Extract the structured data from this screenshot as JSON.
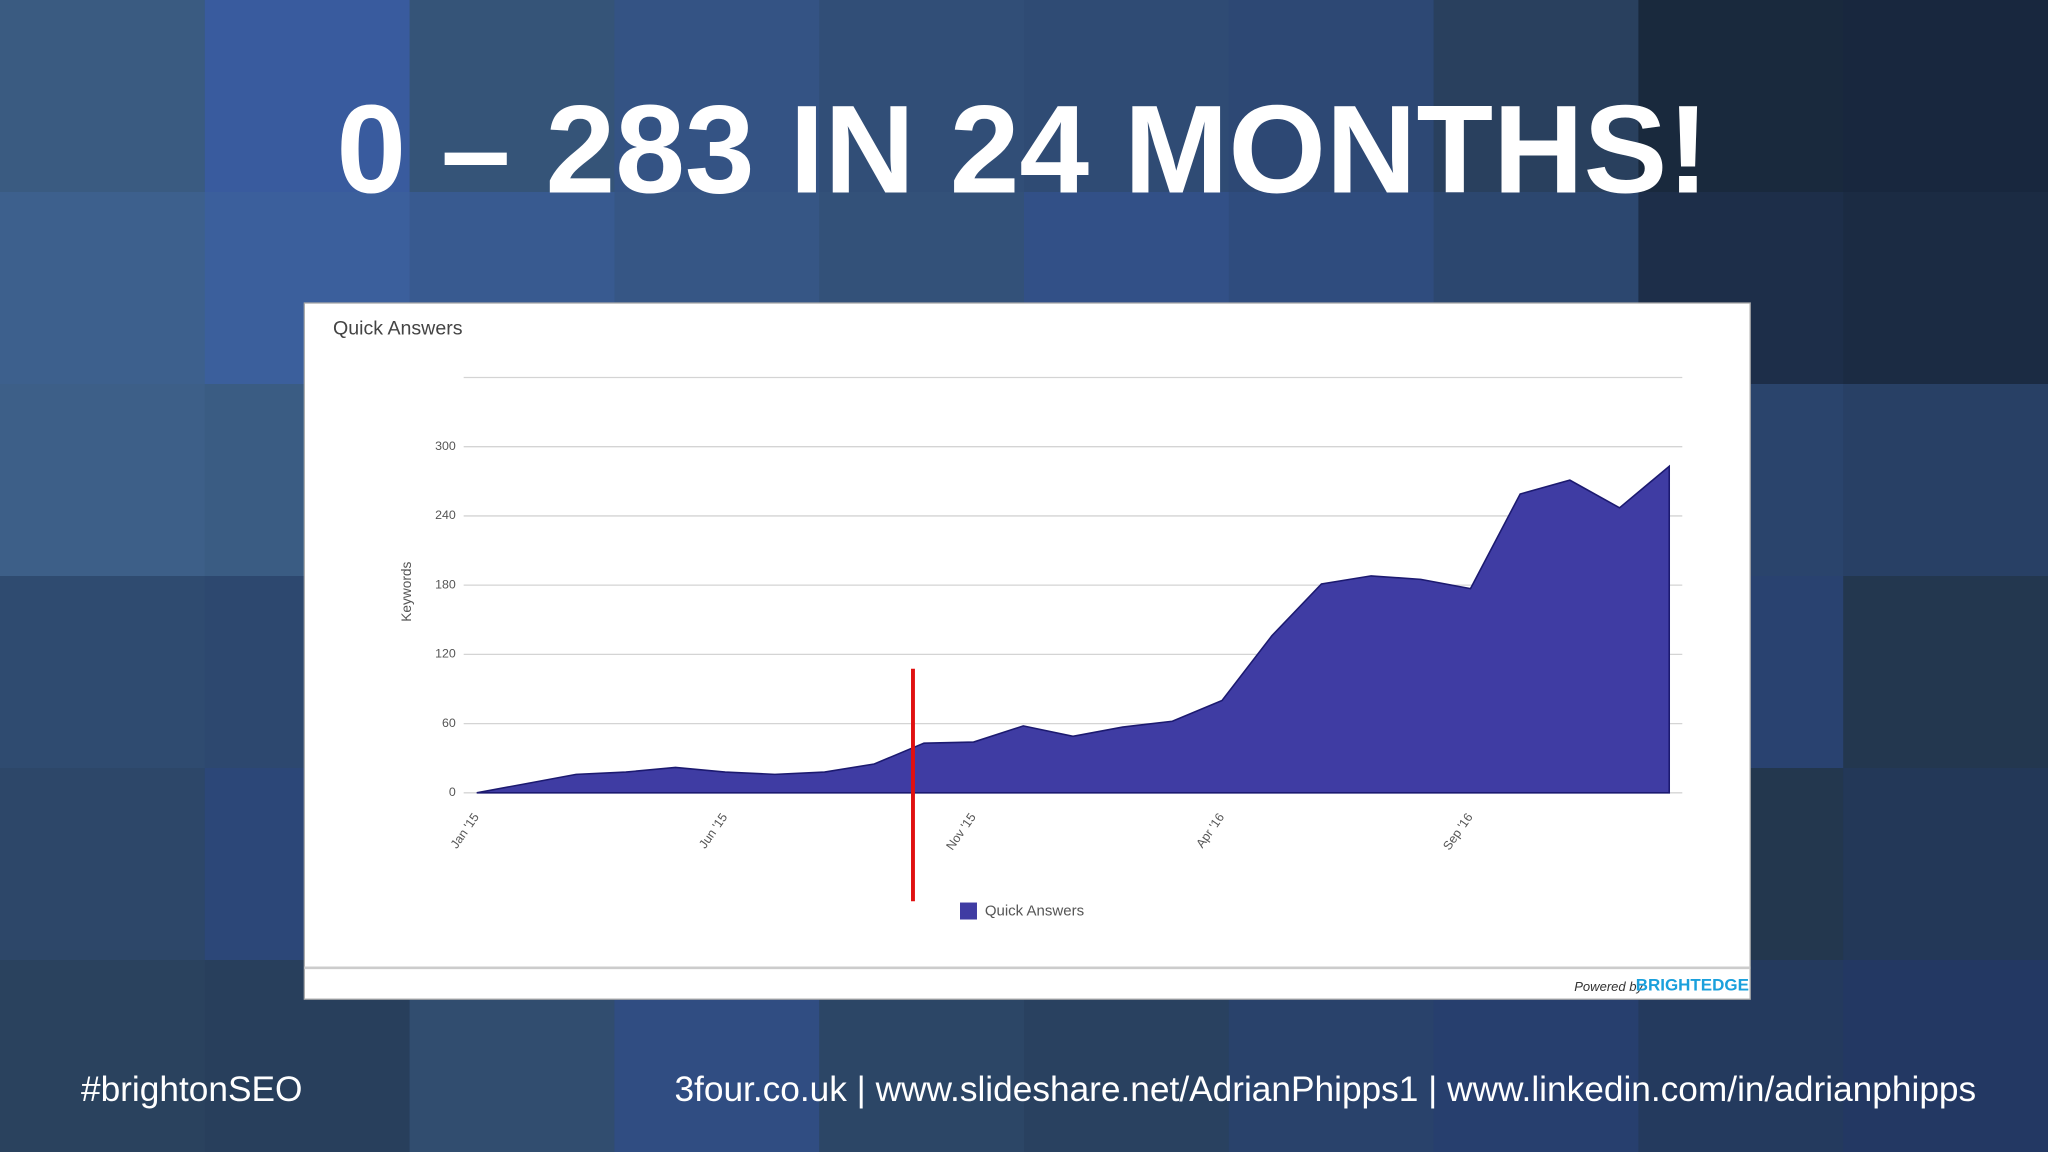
{
  "slide_title": "0 – 283 IN 24 MONTHS!",
  "chart_data": {
    "type": "area",
    "title": "Quick Answers",
    "y_label": "Keywords",
    "categories": [
      "Jan '15",
      null,
      null,
      null,
      null,
      "Jun '15",
      null,
      null,
      null,
      null,
      "Nov '15",
      null,
      null,
      null,
      null,
      "Apr '16",
      null,
      null,
      null,
      null,
      "Sep '16",
      null,
      null,
      null,
      null
    ],
    "series": [
      {
        "name": "Quick Answers",
        "color": "#3f3ca3",
        "values": [
          0,
          8,
          16,
          18,
          22,
          18,
          16,
          18,
          25,
          43,
          44,
          58,
          49,
          57,
          62,
          80,
          136,
          181,
          188,
          185,
          177,
          259,
          271,
          247,
          283
        ]
      }
    ],
    "ylim": [
      0,
      360
    ],
    "yticks": [
      0,
      60,
      120,
      180,
      240,
      300
    ],
    "grid": true
  },
  "branding": {
    "powered_by": "Powered by",
    "brand": "BRIGHTEDGE"
  },
  "footer": {
    "hashtag": "#brightonSEO",
    "links": "3four.co.uk | www.slideshare.net/AdrianPhipps1 | www.linkedin.com/in/adrianphipps"
  }
}
